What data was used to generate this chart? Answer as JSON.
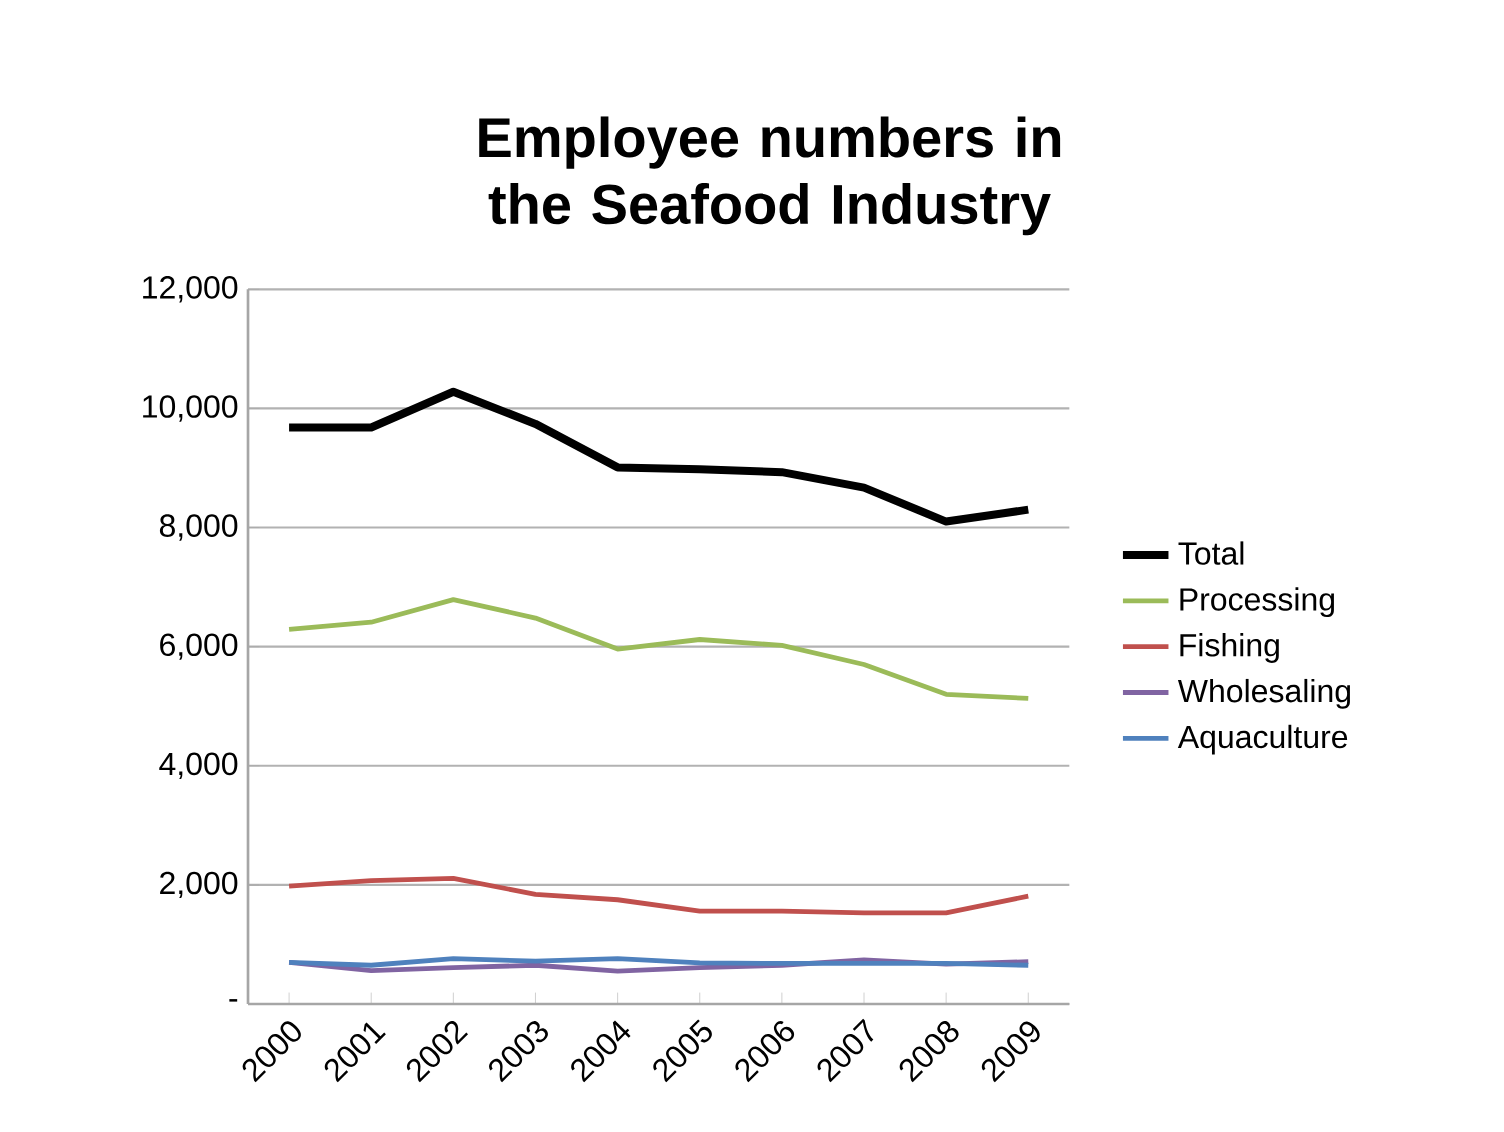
{
  "chart_data": {
    "type": "line",
    "title": "Employee numbers in the Seafood Industry",
    "categories": [
      "2000",
      "2001",
      "2002",
      "2003",
      "2004",
      "2005",
      "2006",
      "2007",
      "2008",
      "2009"
    ],
    "series": [
      {
        "name": "Total",
        "color": "#000000",
        "values": [
          9680,
          9680,
          10280,
          9740,
          9010,
          8980,
          8930,
          8670,
          8100,
          8300
        ]
      },
      {
        "name": "Processing",
        "color": "#9bbb59",
        "values": [
          6290,
          6410,
          6790,
          6480,
          5960,
          6120,
          6020,
          5700,
          5200,
          5130
        ]
      },
      {
        "name": "Fishing",
        "color": "#c0504d",
        "values": [
          1980,
          2070,
          2110,
          1840,
          1750,
          1560,
          1560,
          1530,
          1530,
          1810
        ]
      },
      {
        "name": "Wholesaling",
        "color": "#8064a2",
        "values": [
          700,
          560,
          610,
          650,
          550,
          610,
          650,
          740,
          670,
          710
        ]
      },
      {
        "name": "Aquaculture",
        "color": "#4f81bd",
        "values": [
          700,
          650,
          760,
          720,
          760,
          690,
          680,
          680,
          680,
          650
        ]
      }
    ],
    "ylim": [
      0,
      12000
    ],
    "yticks": [
      {
        "value": 0,
        "label": "-"
      },
      {
        "value": 2000,
        "label": "2,000"
      },
      {
        "value": 4000,
        "label": "4,000"
      },
      {
        "value": 6000,
        "label": "6,000"
      },
      {
        "value": 8000,
        "label": "8,000"
      },
      {
        "value": 10000,
        "label": "10,000"
      },
      {
        "value": 12000,
        "label": "12,000"
      }
    ],
    "grid": "y",
    "legend": "right",
    "marker": "none",
    "line_style": "solid"
  }
}
